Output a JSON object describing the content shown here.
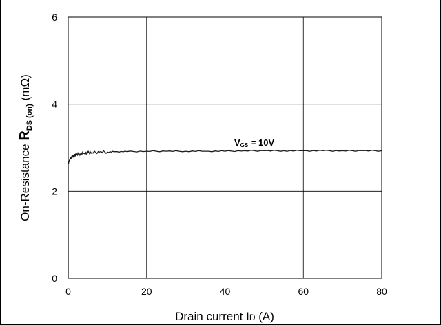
{
  "chart_data": {
    "type": "line",
    "xlabel_main": "Drain current I",
    "xlabel_sub": "D",
    "xlabel_unit": " (A)",
    "ylabel_main": "On-Resistance ",
    "ylabel_sym": "R",
    "ylabel_sub": "DS (on)",
    "ylabel_unit": " (mΩ)",
    "xlim": [
      0,
      80
    ],
    "ylim": [
      0,
      6
    ],
    "xticks": [
      "0",
      "20",
      "40",
      "60",
      "80"
    ],
    "yticks": [
      "0",
      "2",
      "4",
      "6"
    ],
    "grid": true,
    "annotation": {
      "v": "V",
      "sub": "GS",
      "rest": " = 10V"
    },
    "series": [
      {
        "x": [
          0,
          0.3,
          0.6,
          1,
          1.5,
          2,
          3,
          4,
          5,
          6,
          8,
          10,
          12,
          15,
          20,
          25,
          30,
          35,
          40,
          45,
          50,
          55,
          60,
          65,
          70,
          75,
          80
        ],
        "y": [
          2.62,
          2.72,
          2.76,
          2.79,
          2.82,
          2.84,
          2.86,
          2.87,
          2.88,
          2.89,
          2.9,
          2.9,
          2.91,
          2.91,
          2.92,
          2.92,
          2.92,
          2.92,
          2.92,
          2.93,
          2.93,
          2.93,
          2.93,
          2.93,
          2.93,
          2.93,
          2.93
        ]
      }
    ]
  },
  "colors": {
    "line": "#1a1a1a",
    "grid": "#000000"
  }
}
